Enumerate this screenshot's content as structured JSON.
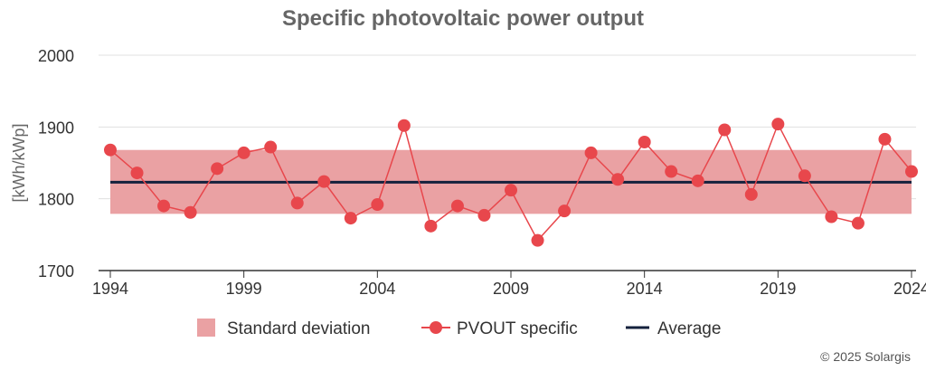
{
  "chart_data": {
    "type": "line",
    "title": "Specific photovoltaic power output",
    "ylabel": "[kWh/kWp]",
    "xlabel": "",
    "ylim": [
      1700,
      2000
    ],
    "yticks": [
      1700,
      1800,
      1900,
      2000
    ],
    "xticks": [
      1994,
      1999,
      2004,
      2009,
      2014,
      2019,
      2024
    ],
    "x": [
      1994,
      1995,
      1996,
      1997,
      1998,
      1999,
      2000,
      2001,
      2002,
      2003,
      2004,
      2005,
      2006,
      2007,
      2008,
      2009,
      2010,
      2011,
      2012,
      2013,
      2014,
      2015,
      2016,
      2017,
      2018,
      2019,
      2020,
      2021,
      2022,
      2023,
      2024
    ],
    "series": [
      {
        "name": "PVOUT specific",
        "color": "#e8474c",
        "values": [
          1868,
          1836,
          1790,
          1781,
          1842,
          1864,
          1872,
          1794,
          1824,
          1773,
          1792,
          1902,
          1762,
          1790,
          1777,
          1812,
          1742,
          1783,
          1864,
          1827,
          1879,
          1838,
          1825,
          1896,
          1806,
          1904,
          1832,
          1775,
          1766,
          1883,
          1838
        ]
      }
    ],
    "average": {
      "name": "Average",
      "value": 1823,
      "color": "#14213d"
    },
    "std_band": {
      "name": "Standard deviation",
      "lower": 1779,
      "upper": 1868,
      "color": "#eaa1a3"
    },
    "grid": true,
    "legend_position": "bottom"
  },
  "credit": "© 2025 Solargis"
}
